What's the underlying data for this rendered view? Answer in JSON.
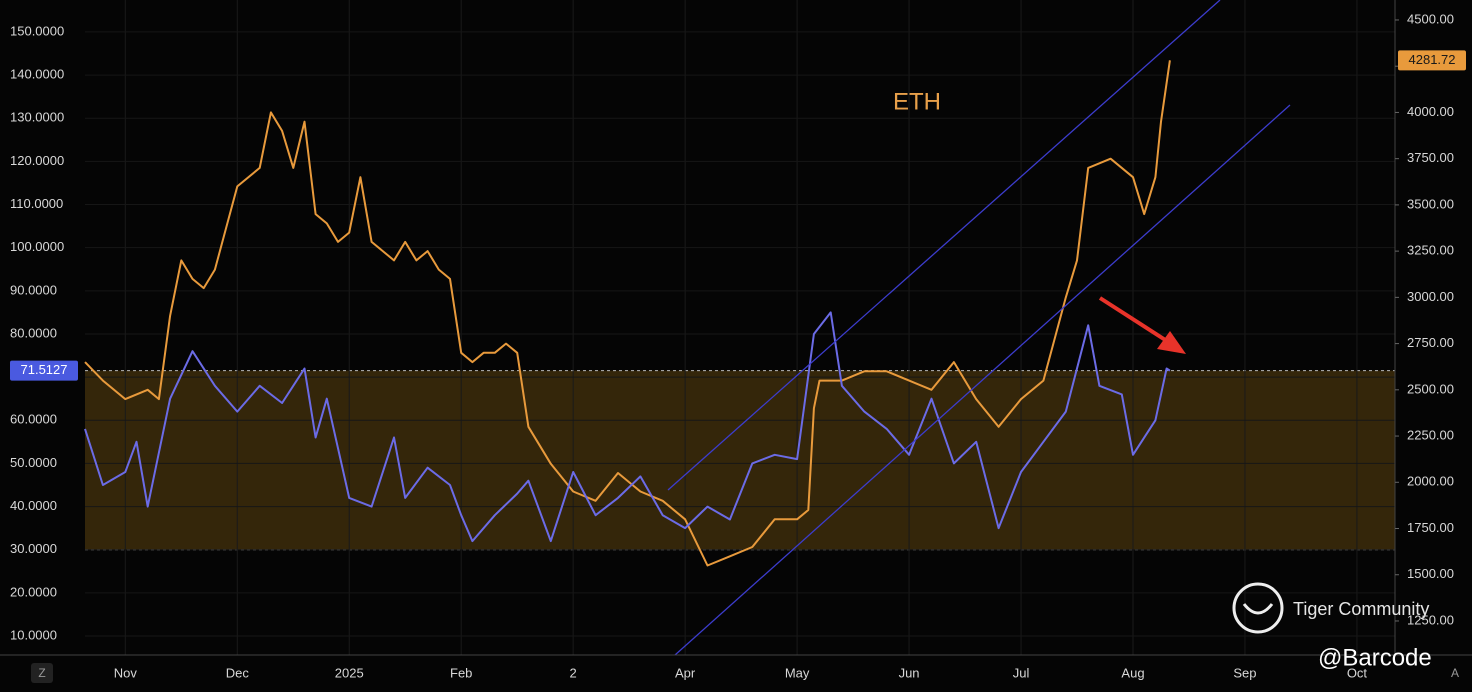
{
  "chart_data": {
    "type": "line",
    "annotation": "ETH",
    "watermark": "Tiger Community",
    "credit": "@Barcode",
    "corner_left": "Z",
    "corner_right": "A",
    "grid": true,
    "xlim": [
      0.64,
      12.34
    ],
    "xticks": [
      {
        "value": 1,
        "label": "Nov"
      },
      {
        "value": 2,
        "label": "Dec"
      },
      {
        "value": 3,
        "label": "2025"
      },
      {
        "value": 4,
        "label": "Feb"
      },
      {
        "value": 5,
        "label": "2"
      },
      {
        "value": 6,
        "label": "Apr"
      },
      {
        "value": 7,
        "label": "May"
      },
      {
        "value": 8,
        "label": "Jun"
      },
      {
        "value": 9,
        "label": "Jul"
      },
      {
        "value": 10,
        "label": "Aug"
      },
      {
        "value": 11,
        "label": "Sep"
      },
      {
        "value": 12,
        "label": "Oct"
      }
    ],
    "ylim": [
      5.6,
      157.4
    ],
    "yticks": [
      {
        "value": 10,
        "label": "10.0000"
      },
      {
        "value": 20,
        "label": "20.0000"
      },
      {
        "value": 30,
        "label": "30.0000"
      },
      {
        "value": 40,
        "label": "40.0000"
      },
      {
        "value": 50,
        "label": "50.0000"
      },
      {
        "value": 60,
        "label": "60.0000"
      },
      {
        "value": 70,
        "label": "70.0000"
      },
      {
        "value": 80,
        "label": "80.0000"
      },
      {
        "value": 90,
        "label": "90.0000"
      },
      {
        "value": 100,
        "label": "100.0000"
      },
      {
        "value": 110,
        "label": "110.0000"
      },
      {
        "value": 120,
        "label": "120.0000"
      },
      {
        "value": 130,
        "label": "130.0000"
      },
      {
        "value": 140,
        "label": "140.0000"
      },
      {
        "value": 150,
        "label": "150.0000"
      }
    ],
    "y2lim": [
      1066,
      4608
    ],
    "y2ticks": [
      {
        "value": 1250,
        "label": "1250.00"
      },
      {
        "value": 1500,
        "label": "1500.00"
      },
      {
        "value": 1750,
        "label": "1750.00"
      },
      {
        "value": 2000,
        "label": "2000.00"
      },
      {
        "value": 2250,
        "label": "2250.00"
      },
      {
        "value": 2500,
        "label": "2500.00"
      },
      {
        "value": 2750,
        "label": "2750.00"
      },
      {
        "value": 3000,
        "label": "3000.00"
      },
      {
        "value": 3250,
        "label": "3250.00"
      },
      {
        "value": 3500,
        "label": "3500.00"
      },
      {
        "value": 3750,
        "label": "3750.00"
      },
      {
        "value": 4000,
        "label": "4000.00"
      },
      {
        "value": 4250,
        "label": "4250.00"
      },
      {
        "value": 4500,
        "label": "4500.00"
      }
    ],
    "band": [
      30,
      71.5127
    ],
    "band_label": {
      "value": 71.5127,
      "label": "71.5127"
    },
    "price_label": {
      "value": 4281.72,
      "label": "4281.72"
    },
    "series": [
      {
        "color": "#e89a3c",
        "axis": "y2",
        "x": [
          0.64,
          0.8,
          1.0,
          1.2,
          1.3,
          1.4,
          1.5,
          1.6,
          1.7,
          1.8,
          2.0,
          2.2,
          2.3,
          2.4,
          2.5,
          2.6,
          2.7,
          2.8,
          2.9,
          3.0,
          3.1,
          3.2,
          3.3,
          3.4,
          3.5,
          3.6,
          3.7,
          3.8,
          3.9,
          4.0,
          4.1,
          4.2,
          4.3,
          4.4,
          4.5,
          4.6,
          4.7,
          4.8,
          5.0,
          5.2,
          5.4,
          5.6,
          5.8,
          6.0,
          6.2,
          6.4,
          6.6,
          6.8,
          7.0,
          7.1,
          7.15,
          7.2,
          7.4,
          7.6,
          7.8,
          8.0,
          8.2,
          8.4,
          8.6,
          8.8,
          9.0,
          9.2,
          9.4,
          9.5,
          9.6,
          9.8,
          10.0,
          10.1,
          10.2,
          10.25,
          10.33
        ],
        "values": [
          2650,
          2550,
          2450,
          2500,
          2450,
          2900,
          3200,
          3100,
          3050,
          3150,
          3600,
          3700,
          4000,
          3900,
          3700,
          3950,
          3450,
          3400,
          3300,
          3350,
          3650,
          3300,
          3250,
          3200,
          3300,
          3200,
          3250,
          3150,
          3100,
          2700,
          2650,
          2700,
          2700,
          2750,
          2700,
          2300,
          2200,
          2100,
          1950,
          1900,
          2050,
          1950,
          1900,
          1800,
          1550,
          1600,
          1650,
          1800,
          1800,
          1850,
          2400,
          2550,
          2550,
          2600,
          2600,
          2550,
          2500,
          2650,
          2450,
          2300,
          2450,
          2550,
          3000,
          3200,
          3700,
          3750,
          3650,
          3450,
          3650,
          3950,
          4281.72
        ]
      },
      {
        "color": "#6b6be6",
        "axis": "y",
        "x": [
          0.64,
          0.8,
          1.0,
          1.1,
          1.2,
          1.4,
          1.6,
          1.8,
          2.0,
          2.2,
          2.4,
          2.6,
          2.7,
          2.8,
          3.0,
          3.2,
          3.4,
          3.5,
          3.7,
          3.9,
          4.0,
          4.1,
          4.3,
          4.5,
          4.6,
          4.8,
          5.0,
          5.2,
          5.4,
          5.6,
          5.8,
          6.0,
          6.2,
          6.4,
          6.6,
          6.8,
          7.0,
          7.15,
          7.3,
          7.4,
          7.6,
          7.8,
          8.0,
          8.2,
          8.4,
          8.6,
          8.8,
          9.0,
          9.2,
          9.4,
          9.6,
          9.7,
          9.9,
          10.0,
          10.2,
          10.3,
          10.33
        ],
        "values": [
          58,
          45,
          48,
          55,
          40,
          65,
          76,
          68,
          62,
          68,
          64,
          72,
          56,
          65,
          42,
          40,
          56,
          42,
          49,
          45,
          38,
          32,
          38,
          43,
          46,
          32,
          48,
          38,
          42,
          47,
          38,
          35,
          40,
          37,
          50,
          52,
          51,
          80,
          85,
          68,
          62,
          58,
          52,
          65,
          50,
          55,
          35,
          48,
          55,
          62,
          82,
          68,
          66,
          52,
          60,
          72,
          71.5127
        ]
      }
    ]
  }
}
